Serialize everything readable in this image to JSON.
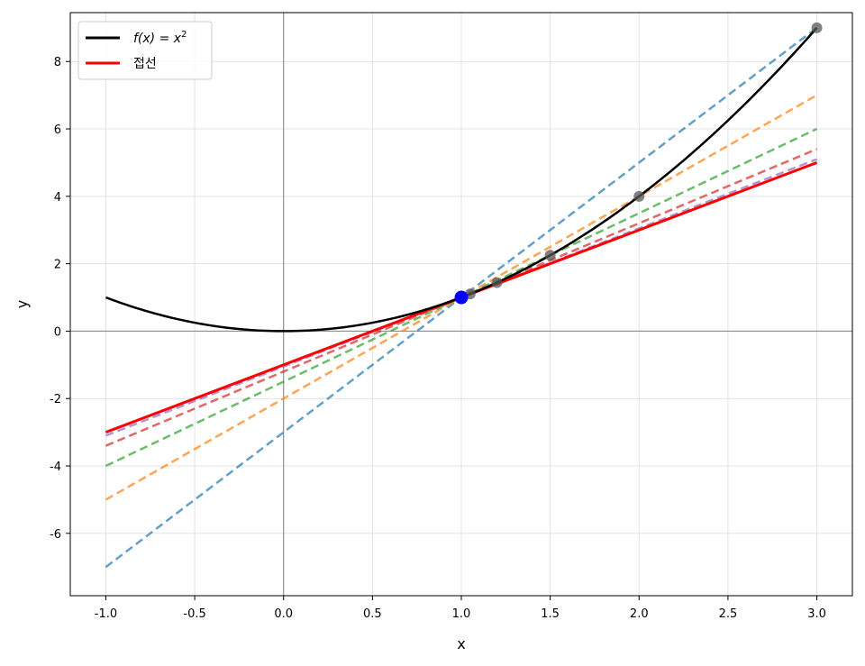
{
  "chart_data": {
    "type": "line",
    "xlabel": "x",
    "ylabel": "y",
    "xlim": [
      -1.2,
      3.2
    ],
    "ylim": [
      -7.85,
      9.45
    ],
    "xticks": [
      -1.0,
      -0.5,
      0.0,
      0.5,
      1.0,
      1.5,
      2.0,
      2.5,
      3.0
    ],
    "xtick_labels": [
      "-1.0",
      "-0.5",
      "0.0",
      "0.5",
      "1.0",
      "1.5",
      "2.0",
      "2.5",
      "3.0"
    ],
    "yticks": [
      -6,
      -4,
      -2,
      0,
      2,
      4,
      6,
      8
    ],
    "ytick_labels": [
      "-6",
      "-4",
      "-2",
      "0",
      "2",
      "4",
      "6",
      "8"
    ],
    "grid": true,
    "legend_position": "top-left",
    "legend": [
      {
        "label_prefix": "f(x) = x",
        "label_sup": "2",
        "color": "#000000"
      },
      {
        "label": "접선",
        "color": "#ff0000"
      }
    ],
    "curve": {
      "function": "x^2",
      "x_range": [
        -1,
        3
      ],
      "color": "#000000"
    },
    "tangent_point": {
      "x": 1,
      "y": 1,
      "color": "#0000ff"
    },
    "secant_points": [
      {
        "x": 3.0,
        "y": 9.0
      },
      {
        "x": 2.0,
        "y": 4.0
      },
      {
        "x": 1.5,
        "y": 2.25
      },
      {
        "x": 1.2,
        "y": 1.44
      },
      {
        "x": 1.05,
        "y": 1.1025
      }
    ],
    "series": [
      {
        "style": "dashed",
        "color": "#1f77b4",
        "x": [
          -1,
          3
        ],
        "y": [
          -7,
          9
        ]
      },
      {
        "style": "dashed",
        "color": "#ff7f0e",
        "x": [
          -1,
          3
        ],
        "y": [
          -5,
          7
        ]
      },
      {
        "style": "dashed",
        "color": "#2ca02c",
        "x": [
          -1,
          3
        ],
        "y": [
          -4,
          6
        ]
      },
      {
        "style": "dashed",
        "color": "#d62728",
        "x": [
          -1,
          3
        ],
        "y": [
          -3.4,
          5.4
        ]
      },
      {
        "style": "dashed",
        "color": "#9467bd",
        "x": [
          -1,
          3
        ],
        "y": [
          -3.1,
          5.1
        ]
      },
      {
        "style": "solid",
        "color": "#ff0000",
        "x": [
          -1,
          3
        ],
        "y": [
          -3,
          5
        ]
      }
    ]
  }
}
